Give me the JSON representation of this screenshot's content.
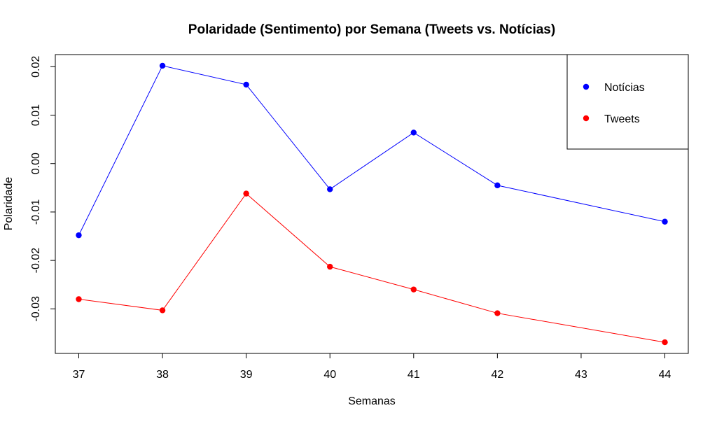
{
  "chart_data": {
    "type": "line",
    "title": "Polaridade (Sentimento) por Semana (Tweets vs. Notícias)",
    "xlabel": "Semanas",
    "ylabel": "Polaridade",
    "x": [
      37,
      38,
      39,
      40,
      41,
      42,
      44
    ],
    "xticks": [
      37,
      38,
      39,
      40,
      41,
      42,
      43,
      44
    ],
    "xtick_labels": [
      "37",
      "38",
      "39",
      "40",
      "41",
      "42",
      "43",
      "44"
    ],
    "yticks": [
      -0.03,
      -0.02,
      -0.01,
      0.0,
      0.01,
      0.02
    ],
    "ytick_labels": [
      "-0.03",
      "-0.02",
      "-0.01",
      "0.00",
      "0.01",
      "0.02"
    ],
    "xlim": [
      36.72,
      44.28
    ],
    "ylim": [
      -0.0392,
      0.0225
    ],
    "grid": false,
    "legend_position": "top-right",
    "series": [
      {
        "name": "Notícias",
        "color": "#0000ff",
        "values": [
          -0.0148,
          0.0202,
          0.0163,
          -0.0053,
          0.0064,
          -0.0045,
          -0.012
        ]
      },
      {
        "name": "Tweets",
        "color": "#ff0000",
        "values": [
          -0.028,
          -0.0303,
          -0.0062,
          -0.0213,
          -0.026,
          -0.0309,
          -0.0369
        ]
      }
    ]
  }
}
